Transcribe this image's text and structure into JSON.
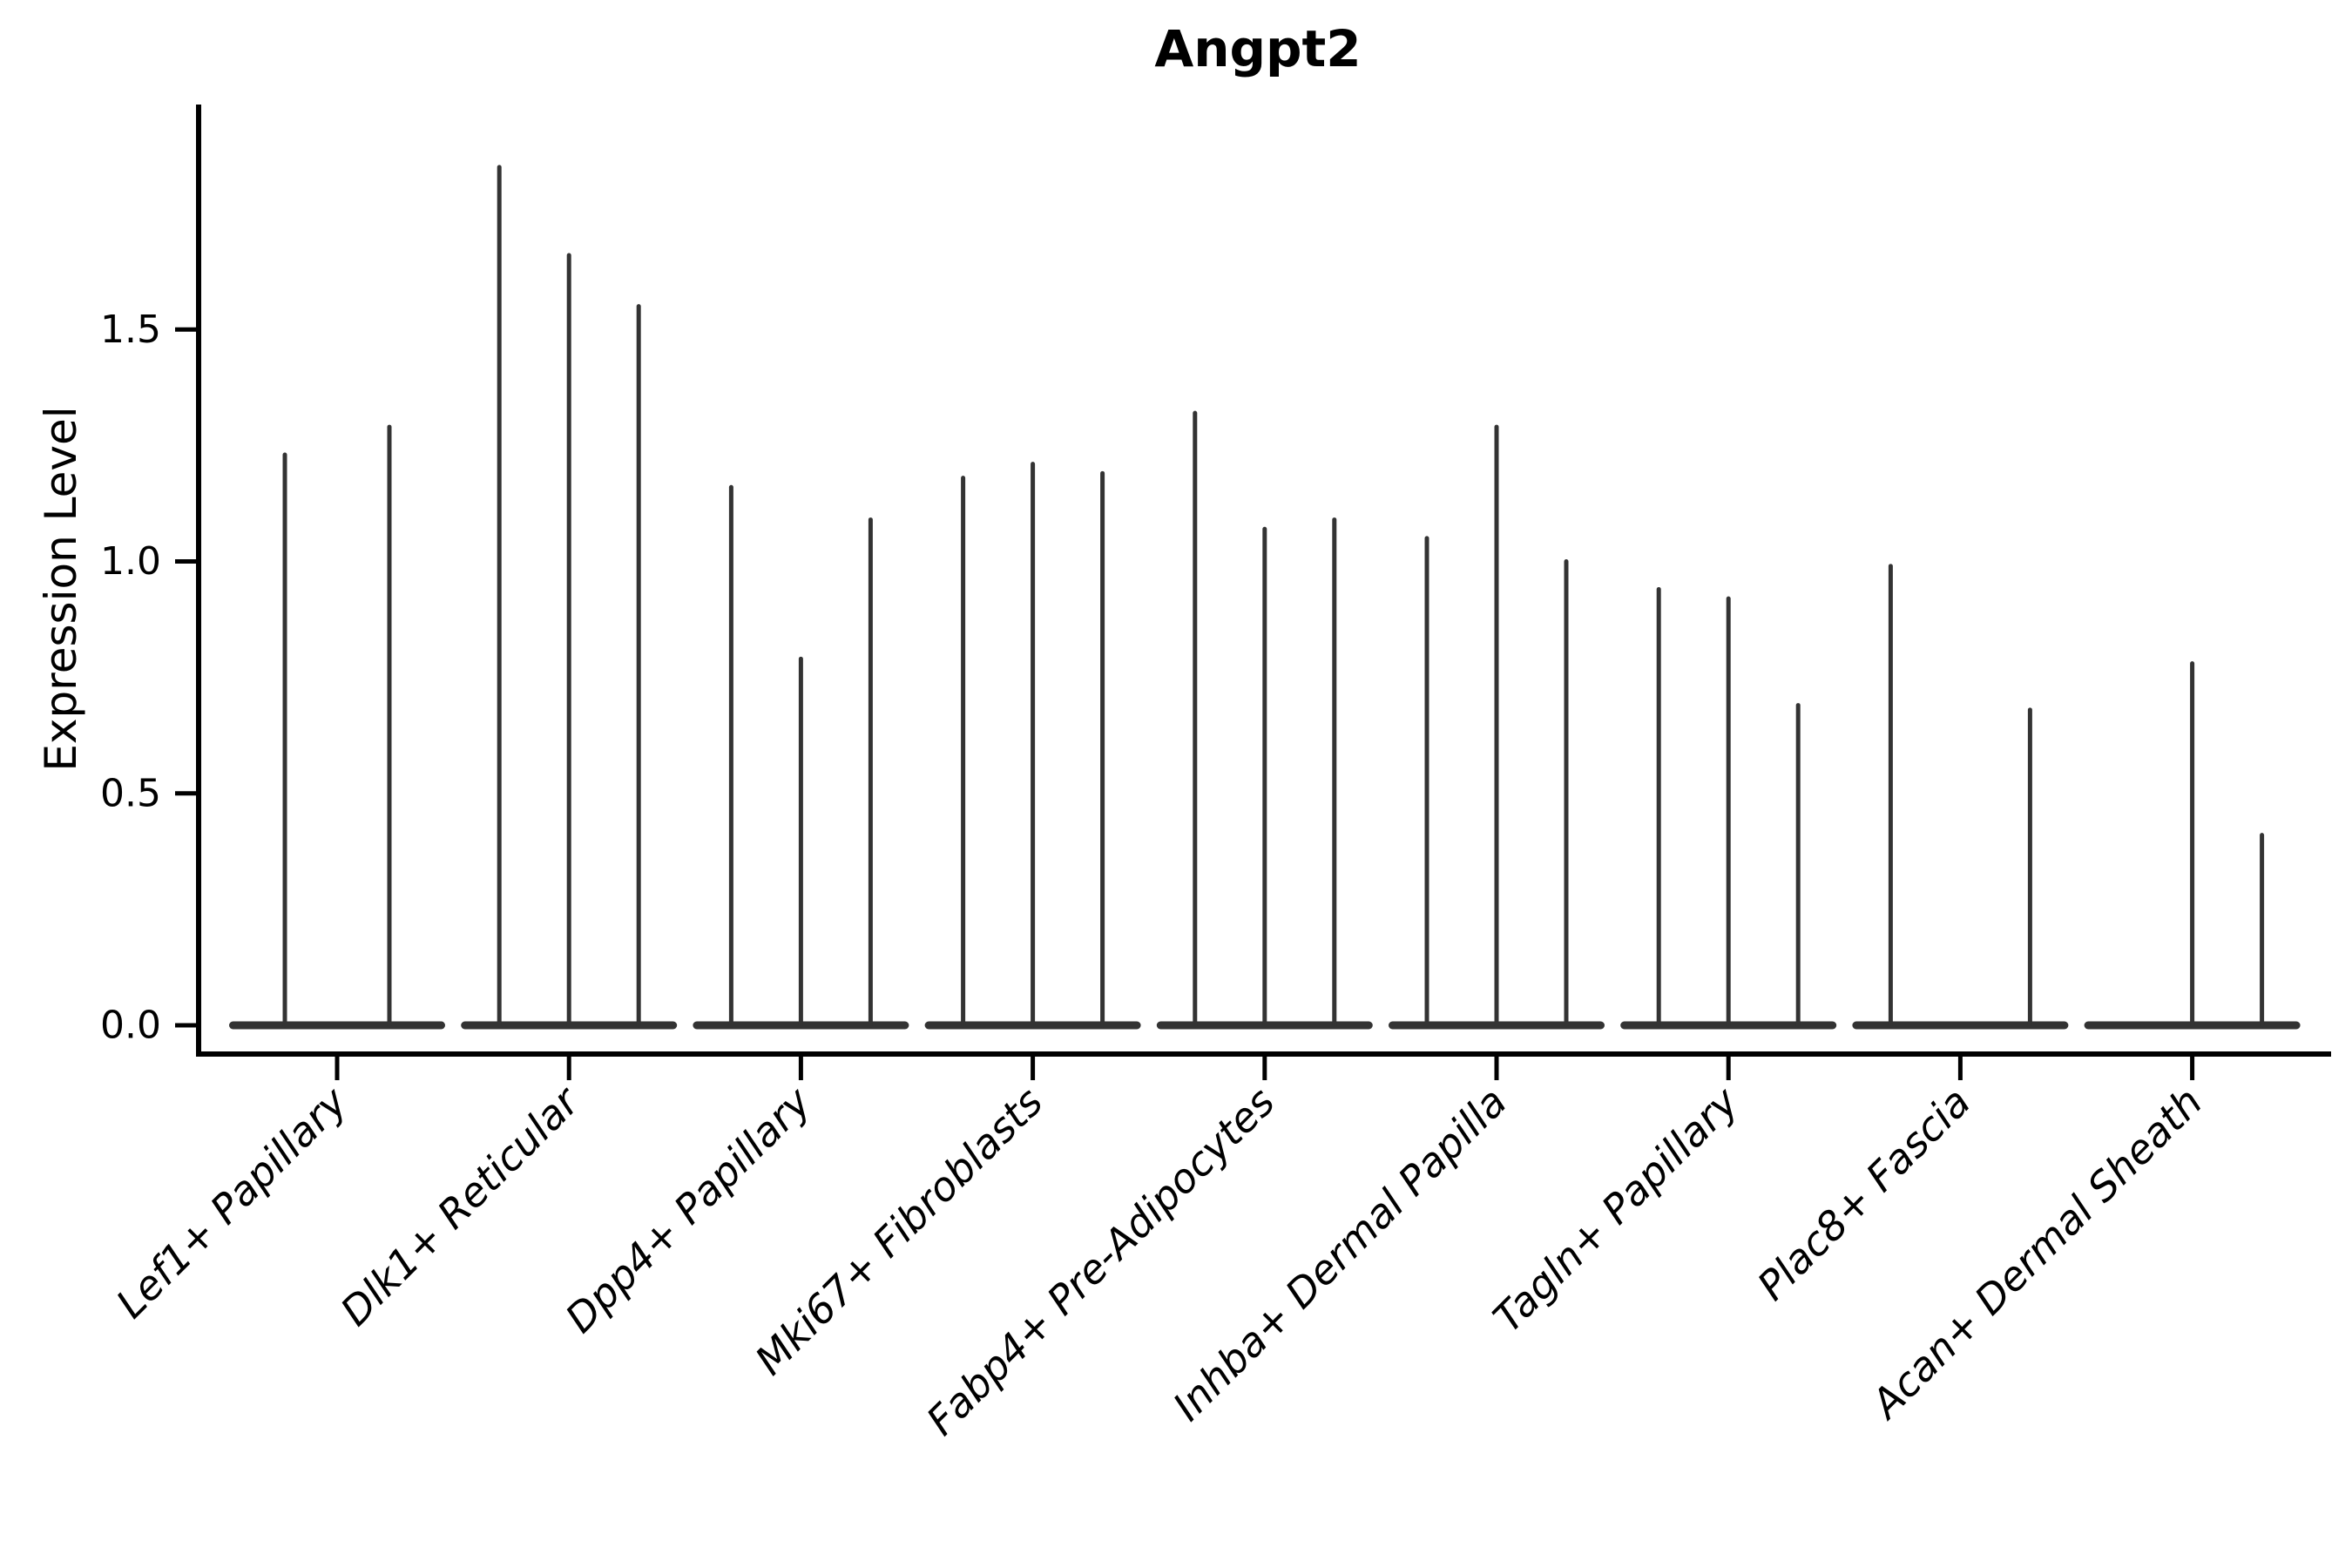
{
  "chart_data": {
    "type": "violin",
    "title": "Angpt2",
    "xlabel": "",
    "ylabel": "Expression Level",
    "ylim": [
      -0.06,
      1.99
    ],
    "yticks": [
      "0.0",
      "0.5",
      "1.0",
      "1.5"
    ],
    "ytick_values": [
      0.0,
      0.5,
      1.0,
      1.5
    ],
    "legend": "none",
    "grid": false,
    "violin_color": "#333333",
    "axis_color": "#000000",
    "note": "Each category holds dodged, extremely thin violins (mostly-zero expression); value listed is each violin's maximum expression spike; max 0 means a flat violin at zero.",
    "categories": [
      "Lef1+ Papillary",
      "Dlk1+ Reticular",
      "Dpp4+ Papillary",
      "Mki67+ Fibroblasts",
      "Fabp4+ Pre-Adipocytes",
      "Inhba+ Dermal Papilla",
      "Tagln+ Papillary",
      "Plac8+ Fascia",
      "Acan+ Dermal Sheath"
    ],
    "groups": [
      {
        "label": "Lef1+ Papillary",
        "violins": [
          {
            "pos": -60,
            "max": 1.23
          },
          {
            "pos": 60,
            "max": 1.29
          }
        ]
      },
      {
        "label": "Dlk1+ Reticular",
        "violins": [
          {
            "pos": -80,
            "max": 1.85
          },
          {
            "pos": 0,
            "max": 1.66
          },
          {
            "pos": 80,
            "max": 1.55
          }
        ]
      },
      {
        "label": "Dpp4+ Papillary",
        "violins": [
          {
            "pos": -80,
            "max": 1.16
          },
          {
            "pos": 0,
            "max": 0.79
          },
          {
            "pos": 80,
            "max": 1.09
          }
        ]
      },
      {
        "label": "Mki67+ Fibroblasts",
        "violins": [
          {
            "pos": -80,
            "max": 1.18
          },
          {
            "pos": 0,
            "max": 1.21
          },
          {
            "pos": 80,
            "max": 1.19
          }
        ]
      },
      {
        "label": "Fabp4+ Pre-Adipocytes",
        "violins": [
          {
            "pos": -80,
            "max": 1.32
          },
          {
            "pos": 0,
            "max": 1.07
          },
          {
            "pos": 80,
            "max": 1.09
          }
        ]
      },
      {
        "label": "Inhba+ Dermal Papilla",
        "violins": [
          {
            "pos": -80,
            "max": 1.05
          },
          {
            "pos": 0,
            "max": 1.29
          },
          {
            "pos": 80,
            "max": 1.0
          }
        ]
      },
      {
        "label": "Tagln+ Papillary",
        "violins": [
          {
            "pos": -80,
            "max": 0.94
          },
          {
            "pos": 0,
            "max": 0.92
          },
          {
            "pos": 80,
            "max": 0.69
          }
        ]
      },
      {
        "label": "Plac8+ Fascia",
        "violins": [
          {
            "pos": -80,
            "max": 0.99
          },
          {
            "pos": 0,
            "max": 0.0
          },
          {
            "pos": 80,
            "max": 0.68
          }
        ]
      },
      {
        "label": "Acan+ Dermal Sheath",
        "violins": [
          {
            "pos": -80,
            "max": 0.0
          },
          {
            "pos": 0,
            "max": 0.78
          },
          {
            "pos": 80,
            "max": 0.41
          }
        ]
      }
    ]
  }
}
